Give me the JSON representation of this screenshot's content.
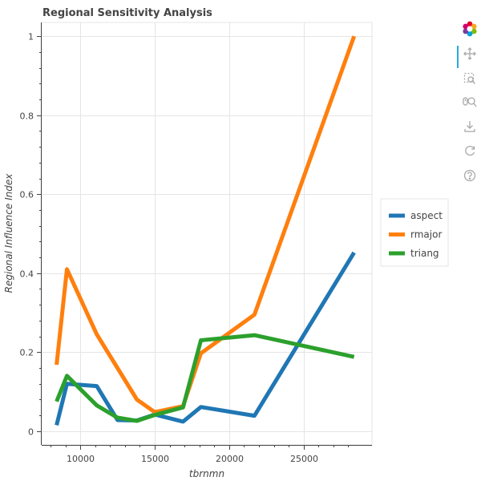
{
  "chart_data": {
    "type": "line",
    "title": "Regional Sensitivity Analysis",
    "xlabel": "tbrnmn",
    "ylabel": "Regional Influence Index",
    "xlim": [
      7400,
      29600
    ],
    "ylim": [
      -0.035,
      1.035
    ],
    "x_ticks": [
      10000,
      15000,
      20000,
      25000
    ],
    "y_ticks": [
      0,
      0.2,
      0.4,
      0.6,
      0.8,
      1
    ],
    "x_tick_labels": [
      "10000",
      "15000",
      "20000",
      "25000"
    ],
    "y_tick_labels": [
      "0",
      "0.2",
      "0.4",
      "0.6",
      "0.8",
      "1"
    ],
    "grid": true,
    "legend_position": "right",
    "series": [
      {
        "name": "aspect",
        "color": "#1f77b4",
        "x": [
          8400,
          9100,
          11100,
          12500,
          13800,
          15000,
          16900,
          18100,
          21700,
          28400
        ],
        "y": [
          0.015,
          0.12,
          0.114,
          0.028,
          0.027,
          0.042,
          0.024,
          0.061,
          0.039,
          0.452
        ]
      },
      {
        "name": "rmajor",
        "color": "#ff7f0e",
        "x": [
          8400,
          9100,
          11100,
          13800,
          15000,
          16900,
          18100,
          21700,
          28400
        ],
        "y": [
          0.168,
          0.41,
          0.245,
          0.08,
          0.048,
          0.063,
          0.197,
          0.295,
          1.0
        ]
      },
      {
        "name": "triang",
        "color": "#2ca02c",
        "x": [
          8400,
          9100,
          11100,
          12500,
          13800,
          15000,
          16900,
          18100,
          21700,
          28400
        ],
        "y": [
          0.075,
          0.14,
          0.065,
          0.034,
          0.026,
          0.041,
          0.06,
          0.23,
          0.243,
          0.188
        ]
      }
    ]
  },
  "toolbar": {
    "logo_icon": "bokeh-logo-icon",
    "tools": [
      "pan-icon",
      "box-zoom-icon",
      "wheel-zoom-icon",
      "save-icon",
      "reset-icon",
      "help-icon"
    ]
  }
}
